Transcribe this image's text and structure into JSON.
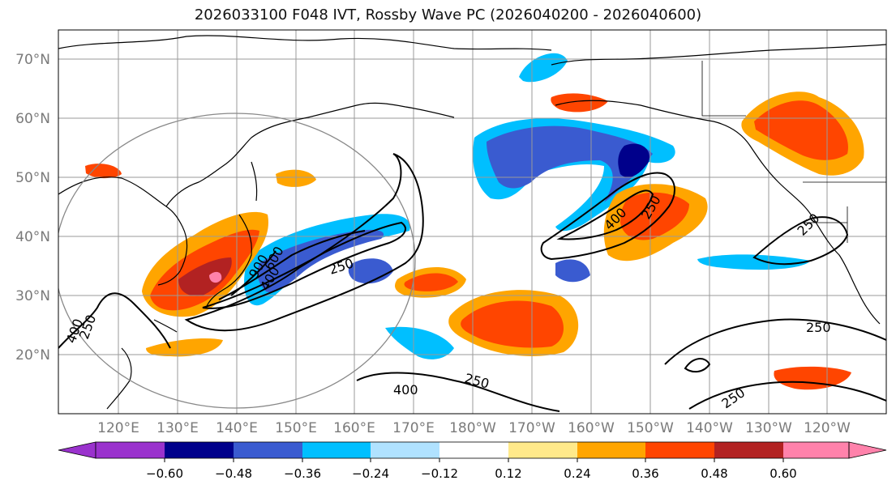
{
  "title": "2026033100 F048 IVT, Rossby Wave PC (2026040200 - 2026040600)",
  "lat_labels": [
    "70°N",
    "60°N",
    "50°N",
    "40°N",
    "30°N",
    "20°N"
  ],
  "lon_labels": [
    "120°E",
    "130°E",
    "140°E",
    "150°E",
    "160°E",
    "170°E",
    "180°W",
    "170°W",
    "160°W",
    "150°W",
    "140°W",
    "130°W",
    "120°W"
  ],
  "colorbar": {
    "colors": [
      "#9a32cd",
      "#00008b",
      "#3a5bd0",
      "#00bfff",
      "#b0e2ff",
      "#ffffff",
      "#ffe98a",
      "#ffa500",
      "#ff4500",
      "#b22222",
      "#ff82ab"
    ],
    "tick_labels": [
      "−0.60",
      "−0.48",
      "−0.36",
      "−0.24",
      "−0.12",
      "0.12",
      "0.24",
      "0.36",
      "0.48",
      "0.60"
    ]
  },
  "contour_labels": {
    "c250_nw_pacific": "250",
    "c400_jet_core": "400",
    "c900_jet_core": "900",
    "c600_jet_core": "600",
    "c250_left": "250",
    "c400_left": "400",
    "c400_south": "400",
    "c250_south": "250",
    "c400_gulf": "400",
    "c250_gulf": "250",
    "c250_east": "250",
    "c250_se1": "250",
    "c250_se2": "250"
  }
}
